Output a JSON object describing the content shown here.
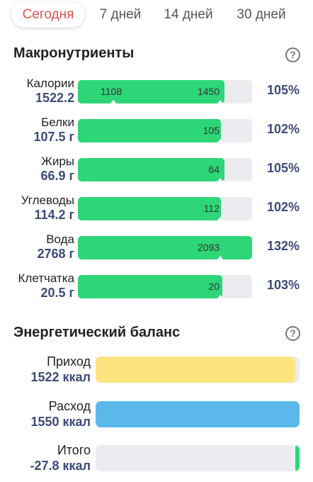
{
  "tabs": [
    {
      "label": "Сегодня",
      "active": true
    },
    {
      "label": "7 дней"
    },
    {
      "label": "14 дней"
    },
    {
      "label": "30 дней"
    }
  ],
  "macros": {
    "title": "Макронутриенты",
    "help_icon": "question-circle-icon",
    "bar_color": "#2dd677",
    "rows": [
      {
        "name": "Калории",
        "value": "1522.2",
        "marker_left": "1108",
        "marker_right": "1450",
        "percent_label": "105%",
        "fill": 0.84
      },
      {
        "name": "Белки",
        "value": "107.5 г",
        "marker_right": "105",
        "percent_label": "102%",
        "fill": 0.82
      },
      {
        "name": "Жиры",
        "value": "66.9 г",
        "marker_right": "64",
        "percent_label": "105%",
        "fill": 0.84
      },
      {
        "name": "Углеводы",
        "value": "114.2 г",
        "marker_right": "112",
        "percent_label": "102%",
        "fill": 0.82
      },
      {
        "name": "Вода",
        "value": "2768 г",
        "marker_right": "2093",
        "percent_label": "132%",
        "fill": 1.0
      },
      {
        "name": "Клетчатка",
        "value": "20.5 г",
        "marker_right": "20",
        "percent_label": "103%",
        "fill": 0.83
      }
    ]
  },
  "energy": {
    "title": "Энергетический баланс",
    "help_icon": "question-circle-icon",
    "rows": [
      {
        "name": "Приход",
        "value": "1522 ккал",
        "color": "#fde47f",
        "fill": 0.98
      },
      {
        "name": "Расход",
        "value": "1550 ккал",
        "color": "#5ab9ea",
        "fill": 1.0
      },
      {
        "name": "Итого",
        "value": "-27.8 ккал",
        "color": "#2dd677",
        "fill": 0.02
      }
    ]
  }
}
